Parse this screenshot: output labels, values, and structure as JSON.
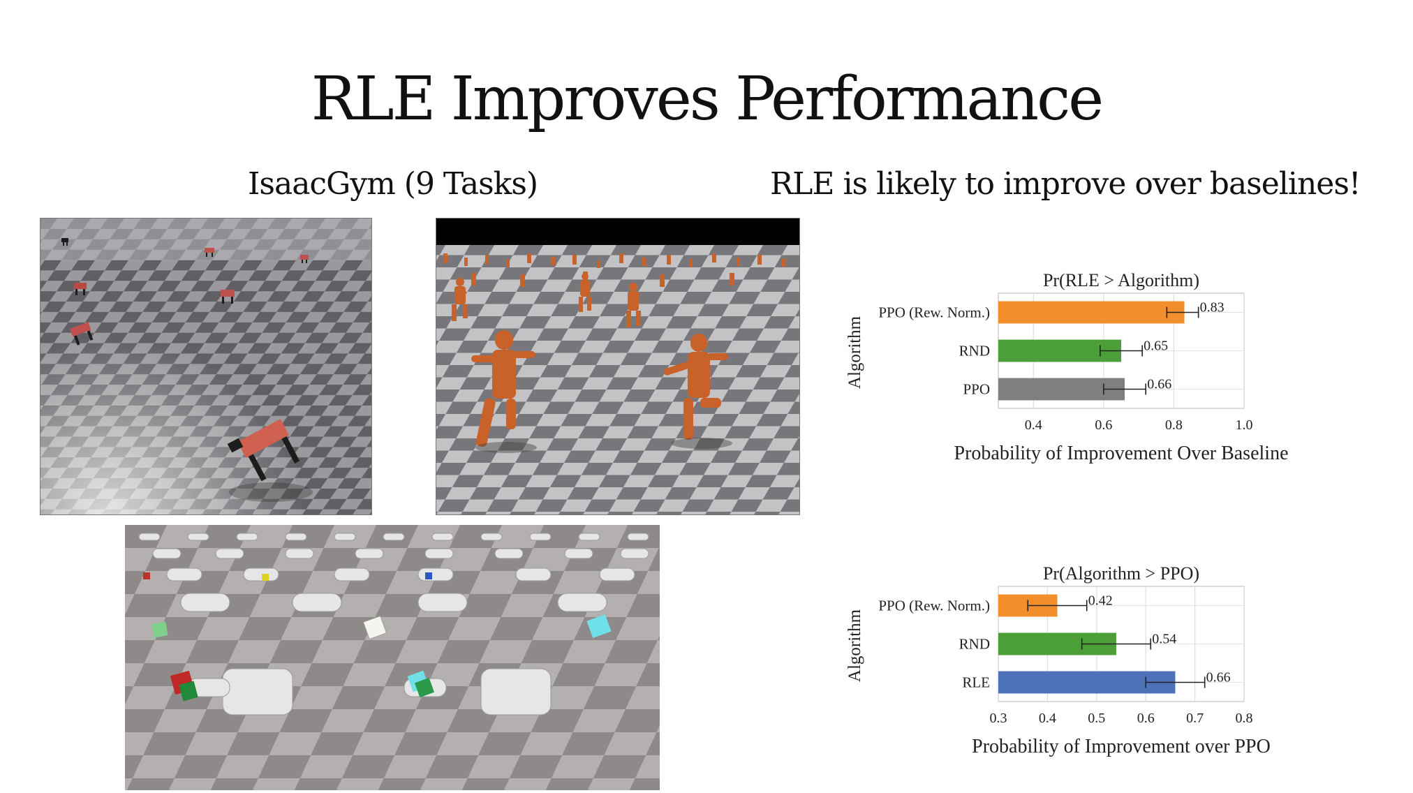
{
  "slide": {
    "title": "RLE Improves Performance",
    "left_heading": "IsaacGym (9 Tasks)",
    "right_heading": "RLE is likely to improve over baselines!"
  },
  "images": {
    "top_left": "quadruped robots on checkerboard floor",
    "top_right": "orange humanoid figures running on checkerboard floor",
    "bottom": "robotic hands holding colored cubes"
  },
  "chart_data": [
    {
      "type": "bar",
      "orientation": "horizontal",
      "title": "Pr(RLE > Algorithm)",
      "xlabel": "Probability of Improvement Over Baseline",
      "ylabel": "Algorithm",
      "categories": [
        "PPO (Rew. Norm.)",
        "RND",
        "PPO"
      ],
      "values": [
        0.83,
        0.65,
        0.66
      ],
      "value_labels": [
        "0.83",
        "0.65",
        "0.66"
      ],
      "error_low": [
        0.78,
        0.59,
        0.6
      ],
      "error_high": [
        0.87,
        0.71,
        0.72
      ],
      "colors": [
        "#f28e2b",
        "#4c9f38",
        "#7f7f7f"
      ],
      "xlim": [
        0.3,
        1.0
      ],
      "xticks": [
        "0.4",
        "0.6",
        "0.8",
        "1.0"
      ],
      "xtick_values": [
        0.4,
        0.6,
        0.8,
        1.0
      ],
      "grid": true
    },
    {
      "type": "bar",
      "orientation": "horizontal",
      "title": "Pr(Algorithm > PPO)",
      "xlabel": "Probability of Improvement over PPO",
      "ylabel": "Algorithm",
      "categories": [
        "PPO (Rew. Norm.)",
        "RND",
        "RLE"
      ],
      "values": [
        0.42,
        0.54,
        0.66
      ],
      "value_labels": [
        "0.42",
        "0.54",
        "0.66"
      ],
      "error_low": [
        0.36,
        0.47,
        0.6
      ],
      "error_high": [
        0.48,
        0.61,
        0.72
      ],
      "colors": [
        "#f28e2b",
        "#4c9f38",
        "#4e72b8"
      ],
      "xlim": [
        0.3,
        0.8
      ],
      "xticks": [
        "0.3",
        "0.4",
        "0.5",
        "0.6",
        "0.7",
        "0.8"
      ],
      "xtick_values": [
        0.3,
        0.4,
        0.5,
        0.6,
        0.7,
        0.8
      ],
      "grid": true
    }
  ]
}
